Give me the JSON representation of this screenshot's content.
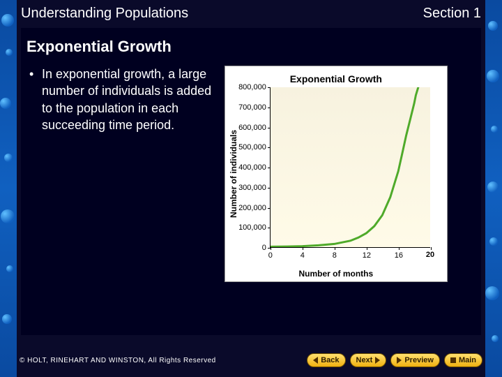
{
  "header": {
    "title": "Understanding Populations",
    "section": "Section 1"
  },
  "slide": {
    "title": "Exponential Growth",
    "bullet": "In exponential growth, a large number of individuals is added to the population in each succeeding time period."
  },
  "chart": {
    "type": "line",
    "title": "Exponential Growth",
    "xlabel": "Number of months",
    "ylabel": "Number of individuals",
    "xlim": [
      0,
      20
    ],
    "ylim": [
      0,
      800000
    ],
    "xticks": [
      0,
      4,
      8,
      12,
      16,
      20
    ],
    "yticks": [
      0,
      100000,
      200000,
      300000,
      400000,
      500000,
      600000,
      700000,
      800000
    ],
    "ytick_labels": [
      "0",
      "100,000",
      "200,000",
      "300,000",
      "400,000",
      "500,000",
      "600,000",
      "700,000",
      "800,000"
    ],
    "series": {
      "x": [
        0,
        2,
        4,
        6,
        8,
        10,
        11,
        12,
        13,
        14,
        15,
        16,
        16.5,
        17,
        17.5,
        18,
        18.2,
        18.5
      ],
      "y": [
        2000,
        3000,
        5000,
        9000,
        16000,
        32000,
        48000,
        70000,
        105000,
        160000,
        250000,
        380000,
        470000,
        560000,
        640000,
        720000,
        760000,
        800000
      ]
    },
    "line_color": "#4faa2a",
    "line_width": 3,
    "plot_bg": "#f7f2df",
    "card_bg": "#ffffff",
    "axis_color": "#000000",
    "title_fontsize": 14,
    "label_fontsize": 12,
    "tick_fontsize": 11
  },
  "nav": {
    "back": "Back",
    "next": "Next",
    "preview": "Preview",
    "main": "Main"
  },
  "copyright": "© HOLT, RINEHART AND WINSTON, All Rights Reserved"
}
